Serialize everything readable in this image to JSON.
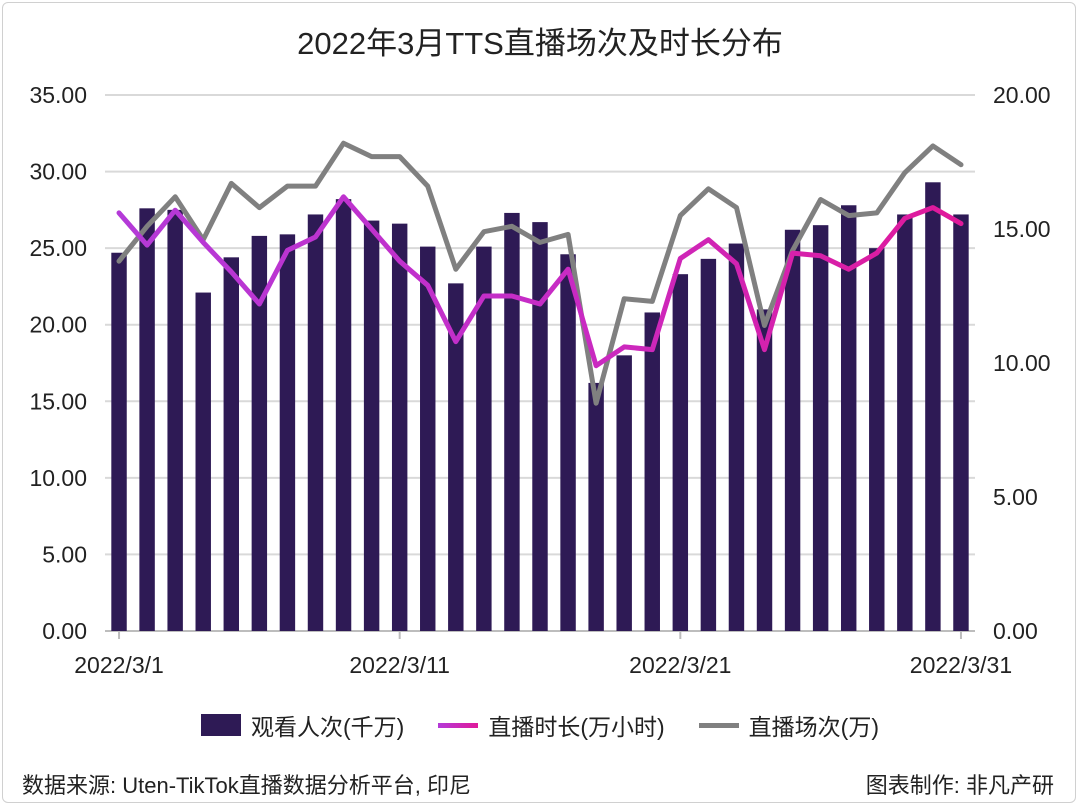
{
  "chart_data": {
    "type": "bar+line",
    "title": "2022年3月TTS直播场次及时长分布",
    "categories": [
      "2022/3/1",
      "2022/3/2",
      "2022/3/3",
      "2022/3/4",
      "2022/3/5",
      "2022/3/6",
      "2022/3/7",
      "2022/3/8",
      "2022/3/9",
      "2022/3/10",
      "2022/3/11",
      "2022/3/12",
      "2022/3/13",
      "2022/3/14",
      "2022/3/15",
      "2022/3/16",
      "2022/3/17",
      "2022/3/18",
      "2022/3/19",
      "2022/3/20",
      "2022/3/21",
      "2022/3/22",
      "2022/3/23",
      "2022/3/24",
      "2022/3/25",
      "2022/3/26",
      "2022/3/27",
      "2022/3/28",
      "2022/3/29",
      "2022/3/30",
      "2022/3/31"
    ],
    "x_tick_labels": [
      "2022/3/1",
      "2022/3/11",
      "2022/3/21",
      "2022/3/31"
    ],
    "y_left": {
      "range": [
        0,
        35
      ],
      "ticks": [
        "0.00",
        "5.00",
        "10.00",
        "15.00",
        "20.00",
        "25.00",
        "30.00",
        "35.00"
      ]
    },
    "y_right": {
      "range": [
        0,
        20
      ],
      "ticks": [
        "0.00",
        "5.00",
        "10.00",
        "15.00",
        "20.00"
      ]
    },
    "grid": true,
    "legend_position": "bottom",
    "series": [
      {
        "name": "观看人次(千万)",
        "type": "bar",
        "axis": "left",
        "color": "#2e1a55",
        "values": [
          24.7,
          27.6,
          27.5,
          22.1,
          24.4,
          25.8,
          25.9,
          27.2,
          28.2,
          26.8,
          26.6,
          25.1,
          22.7,
          25.1,
          27.3,
          26.7,
          24.6,
          16.2,
          18.0,
          20.8,
          23.3,
          24.3,
          25.3,
          21.0,
          26.2,
          26.5,
          27.8,
          25.0,
          27.2,
          29.3,
          27.2
        ]
      },
      {
        "name": "直播时长(万小时)",
        "type": "line",
        "axis": "right",
        "color": "#c42dc8",
        "values": [
          15.6,
          14.4,
          15.7,
          14.5,
          13.4,
          12.2,
          14.2,
          14.7,
          16.2,
          15.0,
          13.8,
          12.9,
          10.8,
          12.5,
          12.5,
          12.2,
          13.5,
          9.9,
          10.6,
          10.5,
          13.9,
          14.6,
          13.7,
          10.5,
          14.1,
          14.0,
          13.5,
          14.1,
          15.4,
          15.8,
          15.2
        ]
      },
      {
        "name": "直播场次(万)",
        "type": "line",
        "axis": "right",
        "color": "#808080",
        "values": [
          13.8,
          15.1,
          16.2,
          14.6,
          16.7,
          15.8,
          16.6,
          16.6,
          18.2,
          17.7,
          17.7,
          16.6,
          13.5,
          14.9,
          15.1,
          14.5,
          14.8,
          8.5,
          12.4,
          12.3,
          15.5,
          16.5,
          15.8,
          11.4,
          14.2,
          16.1,
          15.5,
          15.6,
          17.1,
          18.1,
          17.4
        ]
      }
    ]
  },
  "footer": {
    "source": "数据来源: Uten-TikTok直播数据分析平台, 印尼",
    "credit": "图表制作: 非凡产研"
  }
}
